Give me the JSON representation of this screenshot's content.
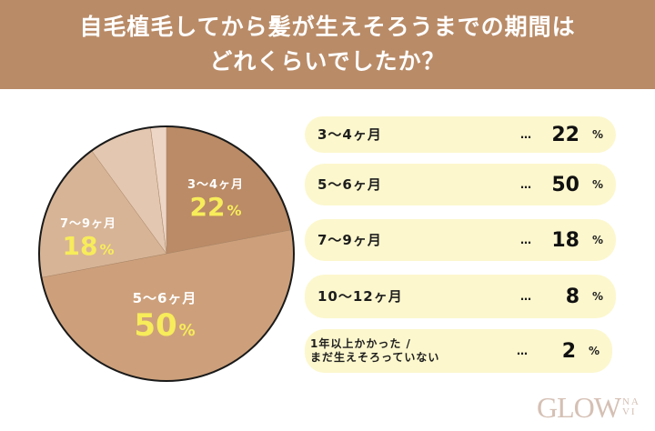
{
  "header": {
    "title_line1": "自毛植毛してから髪が生えそろうまでの期間は",
    "title_line2": "どれくらいでしたか？"
  },
  "colors": {
    "header_bg": "#B98B67",
    "row_bg": "#FCF7CD",
    "value_yellow": "#F7EC5A",
    "slices": [
      "#BA8B66",
      "#CDA07B",
      "#D7B496",
      "#E3C7B0",
      "#EDD6C6"
    ]
  },
  "pie": {
    "slices": [
      {
        "label": "3〜4ヶ月",
        "value": "22",
        "pct": "%"
      },
      {
        "label": "5〜6ヶ月",
        "value": "50",
        "pct": "%"
      },
      {
        "label": "7〜9ヶ月",
        "value": "18",
        "pct": "%"
      }
    ]
  },
  "rows": [
    {
      "label": "3〜4ヶ月",
      "dots": "…",
      "value": "22",
      "pct": "%"
    },
    {
      "label": "5〜6ヶ月",
      "dots": "…",
      "value": "50",
      "pct": "%"
    },
    {
      "label": "7〜9ヶ月",
      "dots": "…",
      "value": "18",
      "pct": "%"
    },
    {
      "label": "10〜12ヶ月",
      "dots": "…",
      "value": "8",
      "pct": "%"
    },
    {
      "label_line1": "1年以上かかった /",
      "label_line2": "まだ生えそろっていない",
      "dots": "…",
      "value": "2",
      "pct": "%"
    }
  ],
  "logo": {
    "main": "GLOW",
    "sub_top": "NA",
    "sub_bottom": "VI"
  },
  "chart_data": {
    "type": "pie",
    "title": "自毛植毛してから髪が生えそろうまでの期間はどれくらいでしたか？",
    "categories": [
      "3〜4ヶ月",
      "5〜6ヶ月",
      "7〜9ヶ月",
      "10〜12ヶ月",
      "1年以上かかった / まだ生えそろっていない"
    ],
    "values": [
      22,
      50,
      18,
      8,
      2
    ],
    "unit": "%",
    "start_angle": "12 o'clock, clockwise",
    "legend_position": "right"
  }
}
